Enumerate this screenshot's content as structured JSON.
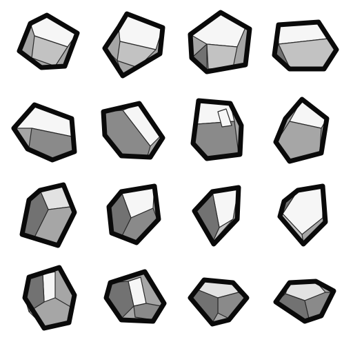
{
  "scene": {
    "background": "#ffffff",
    "outline_color": "#0a0a0a",
    "grid": {
      "rows": 4,
      "cols": 4
    }
  },
  "palette": {
    "white": "#f6f6f6",
    "light": "#e2e2e2",
    "mid": "#c2c2c2",
    "gray": "#a6a6a6",
    "dark": "#8a8a8a",
    "darker": "#727272"
  },
  "rocks": [
    {
      "id": "r1-c1",
      "shade": "light",
      "top_face": "white"
    },
    {
      "id": "r1-c2",
      "shade": "light",
      "top_face": "white"
    },
    {
      "id": "r1-c3",
      "shade": "light",
      "top_face": "white"
    },
    {
      "id": "r1-c4",
      "shade": "mid",
      "top_face": "white"
    },
    {
      "id": "r2-c1",
      "shade": "dark",
      "top_face": "white"
    },
    {
      "id": "r2-c2",
      "shade": "dark",
      "top_face": "white"
    },
    {
      "id": "r2-c3",
      "shade": "dark",
      "top_face": "white"
    },
    {
      "id": "r2-c4",
      "shade": "gray",
      "top_face": "white"
    },
    {
      "id": "r3-c1",
      "shade": "gray",
      "top_face": "light"
    },
    {
      "id": "r3-c2",
      "shade": "dark",
      "top_face": "white"
    },
    {
      "id": "r3-c3",
      "shade": "light",
      "top_face": "white"
    },
    {
      "id": "r3-c4",
      "shade": "light",
      "top_face": "white"
    },
    {
      "id": "r4-c1",
      "shade": "gray",
      "top_face": "white"
    },
    {
      "id": "r4-c2",
      "shade": "dark",
      "top_face": "white"
    },
    {
      "id": "r4-c3",
      "shade": "dark",
      "top_face": "light"
    },
    {
      "id": "r4-c4",
      "shade": "dark",
      "top_face": "light"
    }
  ]
}
